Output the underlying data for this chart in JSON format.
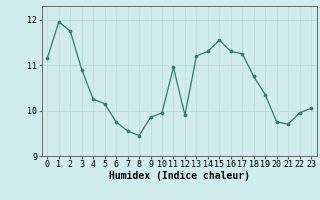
{
  "x": [
    0,
    1,
    2,
    3,
    4,
    5,
    6,
    7,
    8,
    9,
    10,
    11,
    12,
    13,
    14,
    15,
    16,
    17,
    18,
    19,
    20,
    21,
    22,
    23
  ],
  "y": [
    11.15,
    11.95,
    11.75,
    10.9,
    10.25,
    10.15,
    9.75,
    9.55,
    9.45,
    9.85,
    9.95,
    10.95,
    9.9,
    11.2,
    11.3,
    11.55,
    11.3,
    11.25,
    10.75,
    10.35,
    9.75,
    9.7,
    9.95,
    10.05
  ],
  "line_color": "#2e7d6e",
  "marker_color": "#2e7d6e",
  "bg_color": "#d0ecee",
  "grid_color": "#b8d8d8",
  "xlabel": "Humidex (Indice chaleur)",
  "ylim": [
    9.0,
    12.3
  ],
  "xlim": [
    -0.5,
    23.5
  ],
  "yticks": [
    9,
    10,
    11,
    12
  ],
  "xticks": [
    0,
    1,
    2,
    3,
    4,
    5,
    6,
    7,
    8,
    9,
    10,
    11,
    12,
    13,
    14,
    15,
    16,
    17,
    18,
    19,
    20,
    21,
    22,
    23
  ],
  "tick_fontsize": 6,
  "xlabel_fontsize": 7
}
